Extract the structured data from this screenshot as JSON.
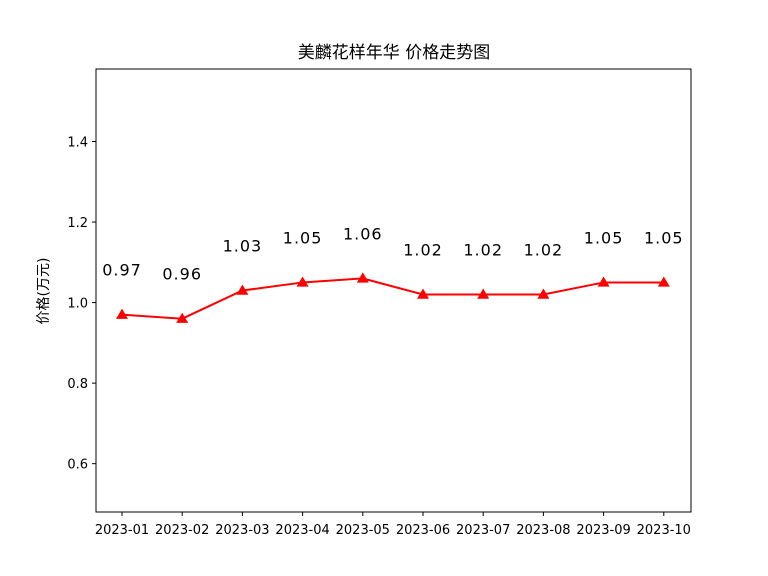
{
  "chart_data": {
    "type": "line",
    "title": "美麟花样年华 价格走势图",
    "xlabel": "",
    "ylabel": "价格(万元)",
    "categories": [
      "2023-01",
      "2023-02",
      "2023-03",
      "2023-04",
      "2023-05",
      "2023-06",
      "2023-07",
      "2023-08",
      "2023-09",
      "2023-10"
    ],
    "series": [
      {
        "values": [
          0.97,
          0.96,
          1.03,
          1.05,
          1.06,
          1.02,
          1.02,
          1.02,
          1.05,
          1.05
        ],
        "labels": [
          "0.97",
          "0.96",
          "1.03",
          "1.05",
          "1.06",
          "1.02",
          "1.02",
          "1.02",
          "1.05",
          "1.05"
        ],
        "color": "#ff0000",
        "marker": "triangle-up"
      }
    ],
    "ylim": [
      0.48,
      1.58
    ],
    "yticks": [
      0.6,
      0.8,
      1.0,
      1.2,
      1.4
    ],
    "ytick_labels": [
      "0.6",
      "0.8",
      "1.0",
      "1.2",
      "1.4"
    ],
    "grid": false,
    "legend": false
  }
}
